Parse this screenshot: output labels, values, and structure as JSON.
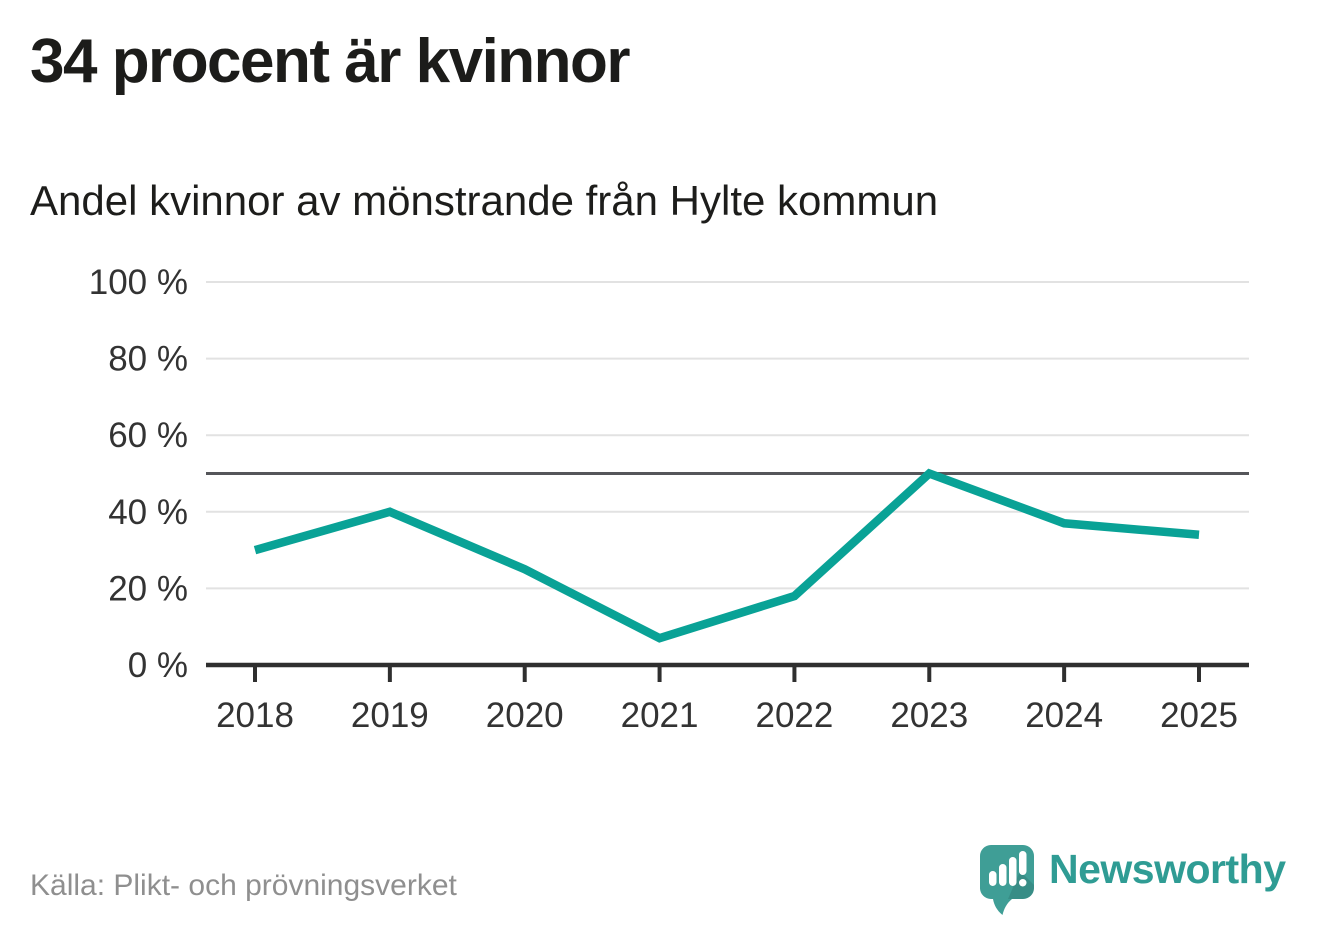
{
  "header": {
    "title": "34 procent är kvinnor",
    "subtitle": "Andel kvinnor av mönstrande från Hylte kommun"
  },
  "chart_data": {
    "type": "line",
    "x": [
      "2018",
      "2019",
      "2020",
      "2021",
      "2022",
      "2023",
      "2024",
      "2025"
    ],
    "series": [
      {
        "name": "andel-kvinnor",
        "values": [
          30,
          40,
          25,
          7,
          18,
          50,
          37,
          34
        ]
      }
    ],
    "title": "34 procent är kvinnor",
    "subtitle": "Andel kvinnor av mönstrande från Hylte kommun",
    "xlabel": "",
    "ylabel": "",
    "ylim": [
      0,
      100
    ],
    "yticks": [
      0,
      20,
      40,
      60,
      80,
      100
    ],
    "ytick_suffix": " %",
    "reference_line": 50,
    "grid": true,
    "legend_position": "none",
    "line_color": "#09a296",
    "gridline_color": "#e2e2e2",
    "reference_line_color": "#55565a",
    "axis_color": "#2f2f2f",
    "tick_label_color": "#333333"
  },
  "footer": {
    "source": "Källa: Plikt- och prövningsverket",
    "brand": "Newsworthy",
    "brand_color": "#2f9c94",
    "logo_bubble_color": "#3f9e96"
  }
}
